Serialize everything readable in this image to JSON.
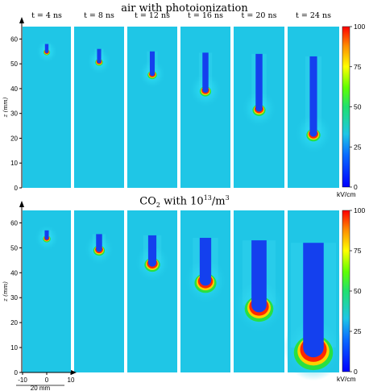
{
  "titles": {
    "top_text": "air with photoionization",
    "bottom_prefix": "CO",
    "bottom_sub": "2",
    "bottom_mid": " with 10",
    "bottom_sup": "13",
    "bottom_suffix": "/m",
    "bottom_sup2": "3"
  },
  "time_labels": [
    "t = 4 ns",
    "t = 8 ns",
    "t = 12 ns",
    "t = 16 ns",
    "t = 20 ns",
    "t = 24 ns"
  ],
  "z_axis": {
    "label": "z (mm)",
    "ticks": [
      "0",
      "10",
      "20",
      "30",
      "40",
      "50",
      "60"
    ]
  },
  "x_axis": {
    "ticks": [
      "-10",
      "0",
      "10"
    ],
    "scale_label": "20 mm"
  },
  "colorbar": {
    "ticks": [
      "100",
      "75",
      "50",
      "25",
      "0"
    ],
    "unit": "kV/cm"
  },
  "colors": {
    "background_field": "#1fc6e6",
    "channel": "#1440ee",
    "front_ring": [
      "#ff2800",
      "#ffd000",
      "#28e040"
    ]
  },
  "panels_top": [
    {
      "tip_z": 55,
      "length": 3,
      "width": 1.3,
      "halo": 8
    },
    {
      "tip_z": 51,
      "length": 5,
      "width": 1.5,
      "halo": 9
    },
    {
      "tip_z": 46,
      "length": 9,
      "width": 1.8,
      "halo": 10
    },
    {
      "tip_z": 39.5,
      "length": 15,
      "width": 2.2,
      "halo": 12
    },
    {
      "tip_z": 32,
      "length": 22,
      "width": 2.5,
      "halo": 13
    },
    {
      "tip_z": 22,
      "length": 31,
      "width": 2.7,
      "halo": 14
    }
  ],
  "panels_bottom": [
    {
      "tip_z": 54,
      "length": 3,
      "width": 1.5,
      "halo": 9
    },
    {
      "tip_z": 49.5,
      "length": 6,
      "width": 2.2,
      "halo": 11
    },
    {
      "tip_z": 44,
      "length": 11,
      "width": 3,
      "halo": 13
    },
    {
      "tip_z": 37,
      "length": 17,
      "width": 4.2,
      "halo": 16
    },
    {
      "tip_z": 27,
      "length": 26,
      "width": 5.5,
      "halo": 19
    },
    {
      "tip_z": 10,
      "length": 42,
      "width": 7.5,
      "halo": 22
    }
  ]
}
